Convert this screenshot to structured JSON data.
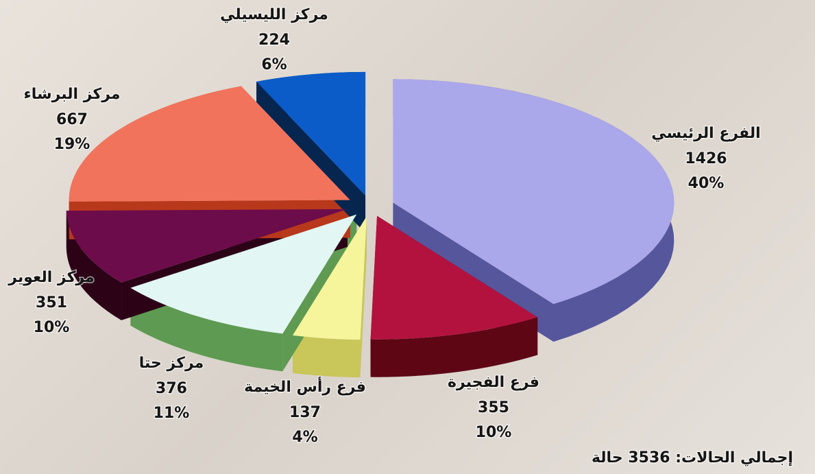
{
  "chart_data": {
    "type": "pie",
    "categories": [
      "الفرع الرئيسي",
      "فرع الفجيرة",
      "فرع رأس الخيمة",
      "مركز حتا",
      "مركز العوير",
      "مركز البرشاء",
      "مركز الليسيلي"
    ],
    "values": [
      1426,
      355,
      137,
      376,
      351,
      667,
      224
    ],
    "percent_labels": [
      "40%",
      "10%",
      "4%",
      "11%",
      "10%",
      "19%",
      "6%"
    ],
    "colors": [
      "#aaa7ea",
      "#b3123f",
      "#f6f59c",
      "#e2f6f3",
      "#6c0c4a",
      "#f2735c",
      "#0b5cc9"
    ],
    "side_colors": [
      "#55569c",
      "#5e0614",
      "#c9c65a",
      "#5e9a52",
      "#2c0216",
      "#b8381c",
      "#06264f"
    ],
    "total_text": "إجمالي الحالات:  3536 حالة"
  }
}
